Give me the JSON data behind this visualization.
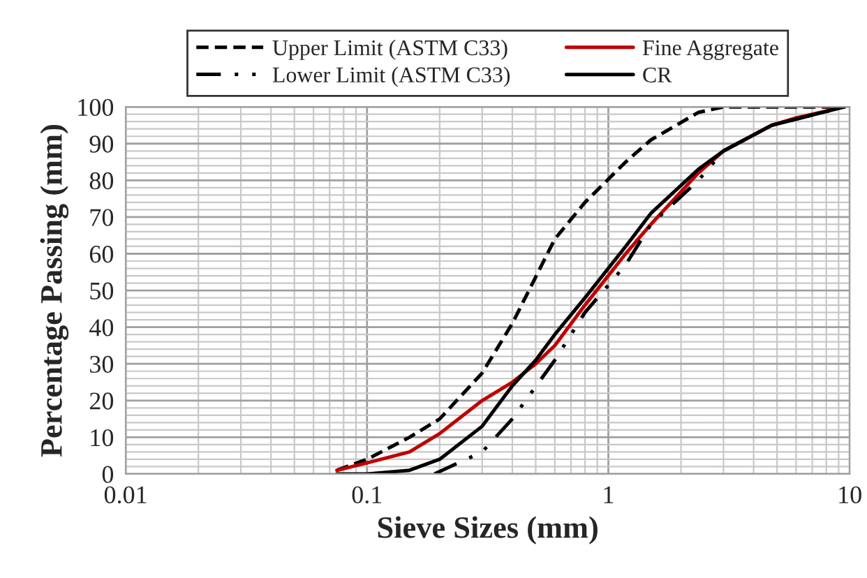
{
  "chart_data": {
    "type": "line",
    "xlabel": "Sieve Sizes (mm)",
    "ylabel": "Percentage Passing (mm)",
    "log": "x",
    "xlim": [
      0.01,
      10
    ],
    "xticks": [
      0.01,
      0.1,
      1,
      10
    ],
    "ylim": [
      0,
      100
    ],
    "yticks": [
      0,
      10,
      20,
      30,
      40,
      50,
      60,
      70,
      80,
      90,
      100
    ],
    "grid": true,
    "legend": "top",
    "marker": "none",
    "series": [
      {
        "name": "Upper Limit (ASTM C33)",
        "color": "#000000",
        "line_style": "dashed",
        "x": [
          0.075,
          0.1,
          0.15,
          0.2,
          0.3,
          0.4,
          0.6,
          0.8,
          1.18,
          1.5,
          2.36,
          3,
          4.75,
          9.5
        ],
        "values": [
          1,
          4,
          10,
          15,
          27.5,
          41,
          64,
          74,
          85,
          91,
          98.5,
          100,
          100,
          100
        ]
      },
      {
        "name": "Fine Aggregate",
        "color": "#c00000",
        "line_style": "solid",
        "x": [
          0.075,
          0.1,
          0.15,
          0.2,
          0.3,
          0.4,
          0.5,
          0.6,
          0.8,
          1.18,
          1.5,
          2.36,
          3,
          4.75,
          6,
          9.5
        ],
        "values": [
          1,
          3,
          6,
          11,
          20,
          25,
          30,
          35,
          46,
          60,
          68,
          82,
          88,
          95,
          97,
          100
        ]
      },
      {
        "name": "Lower Limit (ASTM C33)",
        "color": "#000000",
        "line_style": "dashdot",
        "x": [
          0.19,
          0.3,
          0.4,
          0.6,
          0.8,
          1.18,
          1.5,
          2.36,
          3,
          4.75,
          9.5
        ],
        "values": [
          0,
          6,
          15,
          31,
          44,
          57,
          68,
          80,
          88,
          95,
          100
        ]
      },
      {
        "name": "CR",
        "color": "#000000",
        "line_style": "solid",
        "x": [
          0.075,
          0.1,
          0.15,
          0.2,
          0.3,
          0.4,
          0.5,
          0.6,
          0.8,
          1.18,
          1.5,
          2.36,
          3,
          4.75,
          9.5
        ],
        "values": [
          0,
          0,
          1,
          4,
          13,
          24,
          31,
          38,
          48,
          62,
          71,
          83,
          88,
          95,
          100
        ]
      }
    ]
  }
}
